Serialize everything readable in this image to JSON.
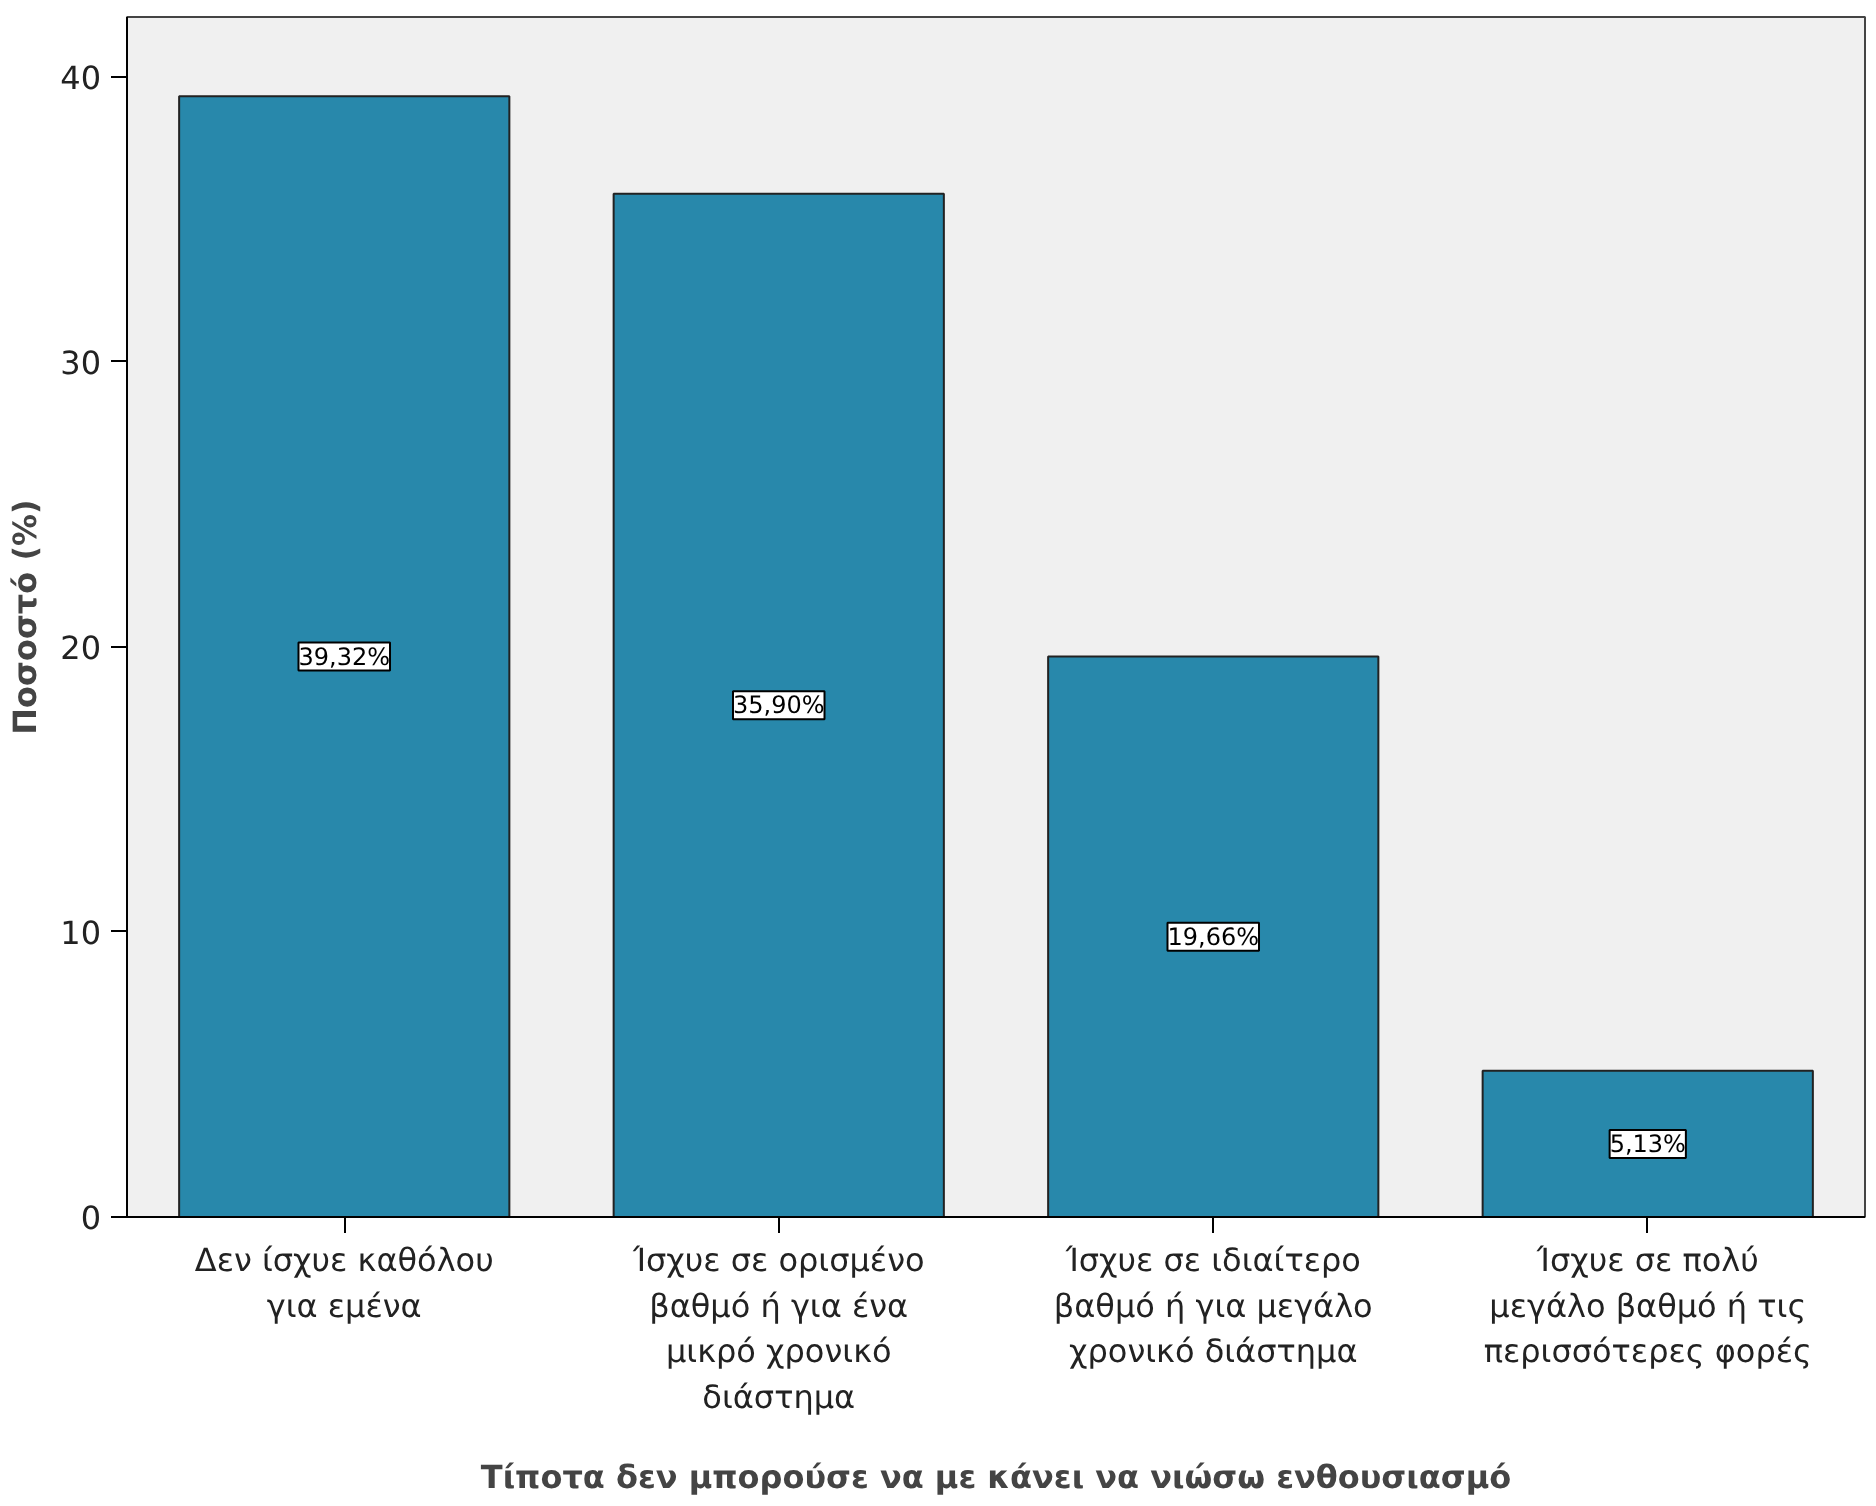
{
  "chart_data": {
    "type": "bar",
    "xlabel": "Τίποτα δεν μπορούσε να με κάνει να νιώσω ενθουσιασμό",
    "ylabel": "Ποσοστό (%)",
    "categories": [
      "Δεν ίσχυε καθόλου για εμένα",
      "Ίσχυε σε ορισμένο βαθμό ή για ένα μικρό χρονικό διάστημα",
      "Ίσχυε σε ιδιαίτερο βαθμό ή για μεγάλο χρονικό διάστημα",
      "Ίσχυε σε πολύ μεγάλο βαθμό ή τις περισσότερες φορές"
    ],
    "values": [
      39.32,
      35.9,
      19.66,
      5.13
    ],
    "value_labels": [
      "39,32%",
      "35,90%",
      "19,66%",
      "5,13%"
    ],
    "color": "#2888ab",
    "ylim": [
      0,
      42.1
    ],
    "yticks": [
      0,
      10,
      20,
      30,
      40
    ],
    "grid": false
  }
}
